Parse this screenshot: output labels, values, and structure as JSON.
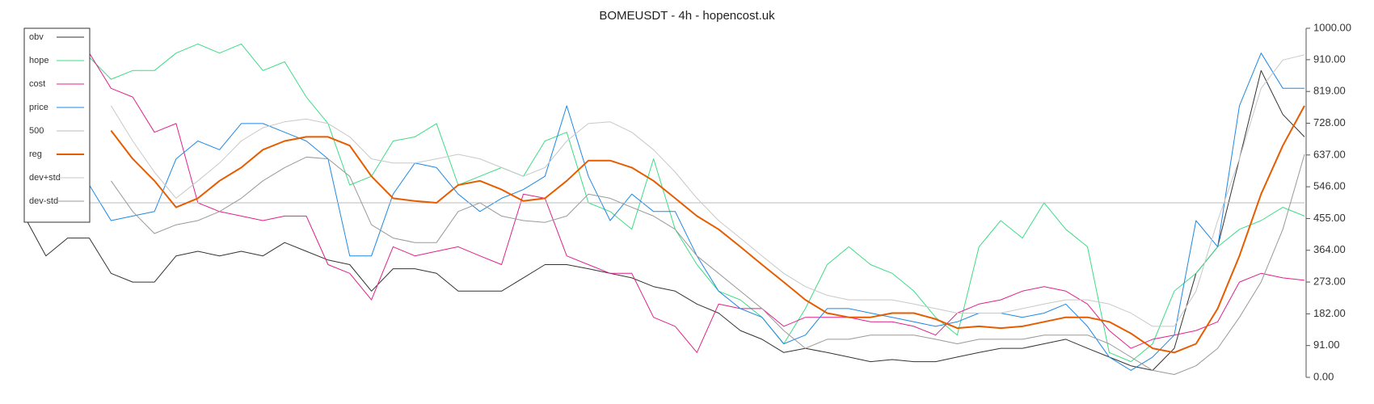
{
  "chart_data": {
    "type": "line",
    "title": "BOMEUSDT - 4h - hopencost.uk",
    "ylim": [
      0,
      1000
    ],
    "yticks": [
      {
        "value": 0,
        "label": "0.00"
      },
      {
        "value": 91,
        "label": "91.00"
      },
      {
        "value": 182,
        "label": "182.00"
      },
      {
        "value": 273,
        "label": "273.00"
      },
      {
        "value": 364,
        "label": "364.00"
      },
      {
        "value": 455,
        "label": "455.00"
      },
      {
        "value": 546,
        "label": "546.00"
      },
      {
        "value": 637,
        "label": "637.00"
      },
      {
        "value": 728,
        "label": "728.00"
      },
      {
        "value": 819,
        "label": "819.00"
      },
      {
        "value": 910,
        "label": "910.00"
      },
      {
        "value": 1000,
        "label": "1000.00"
      }
    ],
    "grid": false,
    "legend": "upper left",
    "series": [
      {
        "name": "obv",
        "color": "#333333",
        "width": 1,
        "values": [
          462,
          348,
          399,
          399,
          298,
          273,
          273,
          348,
          361,
          348,
          361,
          348,
          386,
          361,
          336,
          323,
          247,
          311,
          311,
          298,
          247,
          247,
          247,
          285,
          323,
          323,
          311,
          298,
          285,
          260,
          247,
          210,
          184,
          134,
          109,
          71,
          83,
          71,
          58,
          45,
          51,
          45,
          45,
          58,
          71,
          83,
          83,
          96,
          109,
          83,
          58,
          33,
          20,
          83,
          298,
          374,
          626,
          879,
          753,
          689
        ]
      },
      {
        "name": "hope",
        "color": "#3ddc84",
        "width": 1,
        "values": [
          null,
          null,
          null,
          917,
          854,
          879,
          879,
          929,
          955,
          929,
          955,
          879,
          904,
          803,
          727,
          551,
          576,
          677,
          689,
          727,
          551,
          576,
          601,
          576,
          677,
          702,
          500,
          475,
          424,
          626,
          424,
          323,
          247,
          222,
          172,
          96,
          197,
          323,
          374,
          323,
          298,
          247,
          172,
          121,
          374,
          449,
          399,
          500,
          424,
          374,
          71,
          45,
          96,
          247,
          298,
          374,
          424,
          449,
          487,
          462
        ]
      },
      {
        "name": "cost",
        "color": "#e0218a",
        "width": 1,
        "values": [
          null,
          null,
          null,
          929,
          828,
          803,
          702,
          727,
          500,
          475,
          462,
          449,
          462,
          462,
          323,
          298,
          222,
          374,
          348,
          361,
          374,
          348,
          323,
          525,
          513,
          348,
          323,
          298,
          298,
          172,
          146,
          71,
          210,
          197,
          197,
          146,
          172,
          172,
          172,
          159,
          159,
          146,
          121,
          184,
          210,
          222,
          247,
          260,
          247,
          210,
          134,
          83,
          109,
          121,
          134,
          159,
          273,
          298,
          285,
          278
        ]
      },
      {
        "name": "price",
        "color": "#1e88e5",
        "width": 1,
        "values": [
          null,
          null,
          null,
          551,
          449,
          462,
          475,
          626,
          677,
          652,
          727,
          727,
          702,
          677,
          626,
          348,
          348,
          525,
          614,
          601,
          525,
          475,
          513,
          538,
          576,
          778,
          576,
          449,
          525,
          475,
          475,
          348,
          247,
          197,
          172,
          96,
          121,
          197,
          197,
          184,
          172,
          159,
          146,
          159,
          184,
          184,
          172,
          184,
          210,
          146,
          58,
          20,
          58,
          121,
          449,
          374,
          778,
          929,
          828,
          828
        ]
      },
      {
        "name": "500",
        "color": "#bbbbbb",
        "width": 1,
        "values": [
          500,
          500,
          500,
          500,
          500,
          500,
          500,
          500,
          500,
          500,
          500,
          500,
          500,
          500,
          500,
          500,
          500,
          500,
          500,
          500,
          500,
          500,
          500,
          500,
          500,
          500,
          500,
          500,
          500,
          500,
          500,
          500,
          500,
          500,
          500,
          500,
          500,
          500,
          500,
          500,
          500,
          500,
          500,
          500,
          500,
          500,
          500,
          500,
          500,
          500,
          500,
          500,
          500,
          500,
          500,
          500,
          500,
          500,
          500,
          500
        ]
      },
      {
        "name": "reg",
        "color": "#e65c00",
        "width": 2,
        "values": [
          null,
          null,
          null,
          null,
          707,
          626,
          563,
          487,
          513,
          563,
          601,
          652,
          677,
          689,
          689,
          664,
          576,
          513,
          505,
          500,
          551,
          563,
          538,
          505,
          513,
          563,
          621,
          621,
          601,
          563,
          513,
          462,
          424,
          374,
          323,
          273,
          222,
          184,
          172,
          172,
          184,
          184,
          167,
          141,
          146,
          141,
          146,
          159,
          172,
          172,
          159,
          126,
          83,
          71,
          96,
          197,
          348,
          525,
          664,
          778
        ]
      },
      {
        "name": "dev+std",
        "color": "#c8c8c8",
        "width": 1,
        "values": [
          null,
          null,
          null,
          null,
          778,
          677,
          588,
          513,
          563,
          614,
          677,
          715,
          732,
          740,
          727,
          689,
          626,
          614,
          614,
          626,
          639,
          626,
          601,
          576,
          601,
          677,
          727,
          732,
          702,
          652,
          588,
          513,
          449,
          399,
          348,
          298,
          260,
          235,
          222,
          222,
          222,
          210,
          197,
          184,
          184,
          184,
          197,
          210,
          222,
          222,
          210,
          184,
          146,
          146,
          247,
          449,
          626,
          828,
          909,
          924
        ]
      },
      {
        "name": "dev-std",
        "color": "#999999",
        "width": 1,
        "values": [
          null,
          null,
          null,
          null,
          563,
          475,
          412,
          437,
          449,
          475,
          513,
          563,
          601,
          631,
          626,
          576,
          437,
          399,
          386,
          386,
          475,
          500,
          462,
          449,
          444,
          462,
          525,
          513,
          487,
          462,
          424,
          348,
          298,
          247,
          197,
          134,
          83,
          109,
          109,
          121,
          121,
          121,
          109,
          96,
          109,
          109,
          109,
          121,
          121,
          121,
          96,
          58,
          20,
          8,
          33,
          83,
          172,
          273,
          424,
          639
        ]
      }
    ]
  }
}
